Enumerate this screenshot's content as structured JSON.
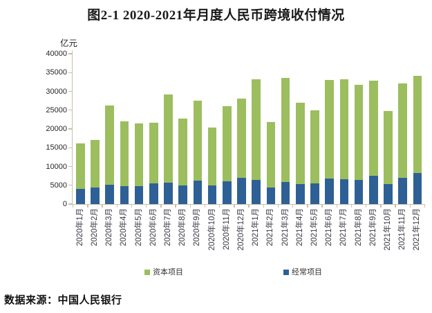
{
  "title": "图2-1 2020-2021年月度人民币跨境收付情况",
  "y_axis_unit": "亿元",
  "source": "数据来源：中国人民银行",
  "colors": {
    "capital_green": "#9CBE5F",
    "current_blue": "#2E6095",
    "axis": "#C6BEB0",
    "background": "#FFFFFF"
  },
  "legend": [
    {
      "label": "资本项目",
      "color": "#9CBE5F"
    },
    {
      "label": "经常项目",
      "color": "#2E6095"
    }
  ],
  "chart_data": {
    "type": "bar",
    "stacked": true,
    "title": "图2-1 2020-2021年月度人民币跨境收付情况",
    "ylabel": "亿元",
    "ylim": [
      0,
      40000
    ],
    "yticks": [
      0,
      5000,
      10000,
      15000,
      20000,
      25000,
      30000,
      35000,
      40000
    ],
    "grid": false,
    "legend_position": "bottom",
    "categories": [
      "2020年1月",
      "2020年2月",
      "2020年3月",
      "2020年4月",
      "2020年5月",
      "2020年6月",
      "2020年7月",
      "2020年8月",
      "2020年9月",
      "2020年10月",
      "2020年11月",
      "2020年12月",
      "2021年1月",
      "2021年2月",
      "2021年3月",
      "2021年4月",
      "2021年5月",
      "2021年6月",
      "2021年7月",
      "2021年8月",
      "2021年9月",
      "2021年10月",
      "2021年11月",
      "2021年12月"
    ],
    "series": [
      {
        "name": "经常项目",
        "color": "#2E6095",
        "stack_order": "bottom",
        "values": [
          4100,
          4400,
          5100,
          4800,
          4850,
          5450,
          5700,
          4900,
          6300,
          4900,
          6100,
          6900,
          6500,
          4400,
          5900,
          5300,
          5500,
          6850,
          6600,
          6400,
          7500,
          5400,
          6900,
          8200
        ]
      },
      {
        "name": "资本项目",
        "color": "#9CBE5F",
        "stack_order": "top",
        "values": [
          12000,
          12700,
          21200,
          17200,
          16650,
          16250,
          23400,
          17900,
          21200,
          15400,
          20000,
          21200,
          26800,
          17500,
          27600,
          21600,
          19400,
          26250,
          26600,
          25400,
          25400,
          19400,
          25200,
          26000
        ]
      }
    ],
    "totals": [
      16100,
      17100,
      26300,
      22000,
      21500,
      21700,
      29100,
      22800,
      27500,
      20300,
      26100,
      28100,
      33300,
      21900,
      33500,
      26900,
      24900,
      33100,
      33200,
      31800,
      32900,
      24800,
      32100,
      34200
    ]
  }
}
